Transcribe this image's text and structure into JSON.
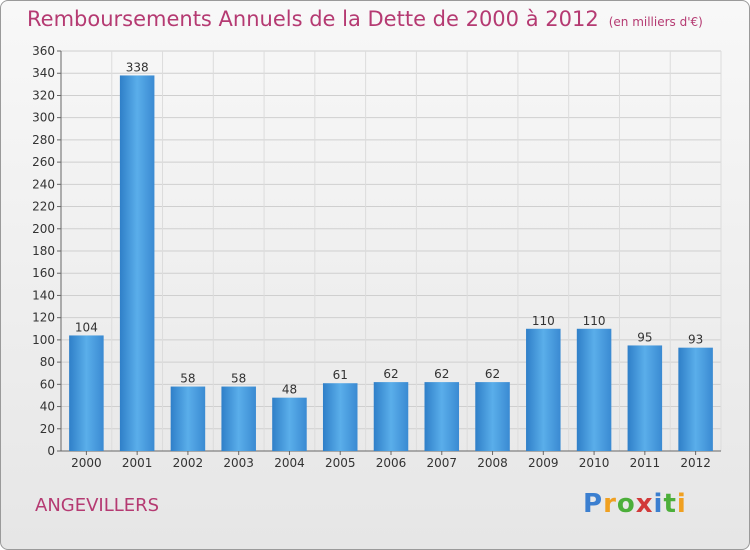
{
  "header": {
    "title": "Remboursements Annuels de la Dette de 2000 à 2012",
    "unit": "(en milliers d'€)"
  },
  "commune": "ANGEVILLERS",
  "logo": {
    "letters": [
      "P",
      "r",
      "o",
      "x",
      "i",
      "t",
      "i"
    ],
    "colors": [
      "#3b7fd0",
      "#f0a020",
      "#4caf3a",
      "#d23a3a",
      "#3b7fd0",
      "#4caf3a",
      "#f0a020"
    ]
  },
  "chart_data": {
    "type": "bar",
    "categories": [
      "2000",
      "2001",
      "2002",
      "2003",
      "2004",
      "2005",
      "2006",
      "2007",
      "2008",
      "2009",
      "2010",
      "2011",
      "2012"
    ],
    "values": [
      104,
      338,
      58,
      58,
      48,
      61,
      62,
      62,
      62,
      110,
      110,
      95,
      93
    ],
    "ylim": [
      0,
      360
    ],
    "yticks": [
      0,
      20,
      40,
      60,
      80,
      100,
      120,
      140,
      160,
      180,
      200,
      220,
      240,
      260,
      280,
      300,
      320,
      340,
      360
    ],
    "grid": true,
    "bar_color": "#3d92d8"
  }
}
